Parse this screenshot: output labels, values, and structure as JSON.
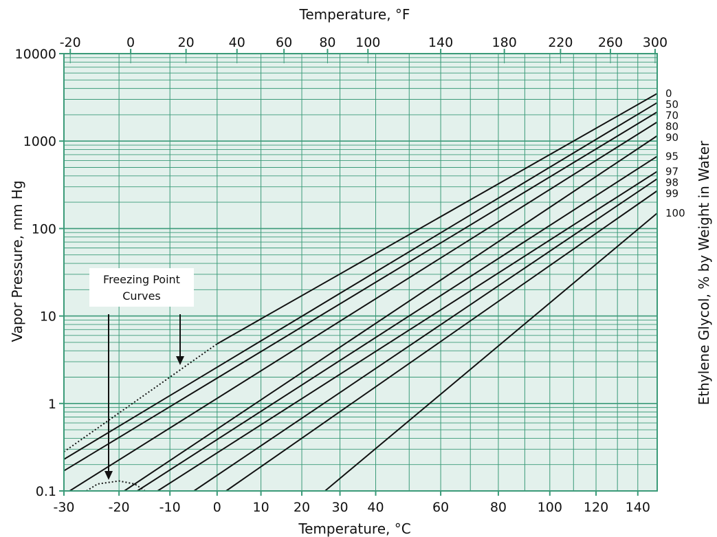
{
  "chart_data": {
    "type": "line",
    "xlabel_bottom": "Temperature, °C",
    "xlabel_top": "Temperature, °F",
    "ylabel": "Vapor Pressure, mm Hg",
    "right_label": "Ethylene Glycol, % by Weight in Water",
    "y_scale": "log",
    "ylim": [
      0.1,
      10000
    ],
    "y_ticks": [
      0.1,
      1,
      10,
      100,
      1000,
      10000
    ],
    "y_tick_labels": [
      "0.1",
      "1",
      "10",
      "100",
      "1000",
      "10000"
    ],
    "x_scale": "reciprocal_absolute_temperature",
    "x_ticks_c": [
      -30,
      -20,
      -10,
      0,
      10,
      20,
      30,
      40,
      60,
      80,
      100,
      120,
      140
    ],
    "x_tick_labels_c": [
      "-30",
      "-20",
      "-10",
      "0",
      "10",
      "20",
      "30",
      "40",
      "60",
      "80",
      "100",
      "120",
      "140"
    ],
    "x_ticks_f": [
      -20,
      0,
      20,
      40,
      60,
      80,
      100,
      140,
      180,
      220,
      260,
      300
    ],
    "x_tick_labels_f": [
      "-20",
      "0",
      "20",
      "40",
      "60",
      "80",
      "100",
      "140",
      "180",
      "220",
      "260",
      "300"
    ],
    "xlim_c": [
      -30,
      150
    ],
    "grid": true,
    "colors": {
      "background": "#e3f1ec",
      "grid": "#3a9a78",
      "line": "#111111"
    },
    "series": [
      {
        "name": "0",
        "points": [
          [
            0,
            4.8
          ],
          [
            150,
            3500
          ]
        ]
      },
      {
        "name": "50",
        "points": [
          [
            -30,
            0.23
          ],
          [
            150,
            2750
          ]
        ]
      },
      {
        "name": "70",
        "points": [
          [
            -30,
            0.17
          ],
          [
            150,
            2150
          ]
        ]
      },
      {
        "name": "80",
        "points": [
          [
            -29,
            0.1
          ],
          [
            150,
            1650
          ]
        ]
      },
      {
        "name": "90",
        "points": [
          [
            -19,
            0.1
          ],
          [
            150,
            1150
          ]
        ]
      },
      {
        "name": "95",
        "points": [
          [
            -16.5,
            0.1
          ],
          [
            150,
            670
          ]
        ]
      },
      {
        "name": "97",
        "points": [
          [
            -12.5,
            0.1
          ],
          [
            150,
            450
          ]
        ]
      },
      {
        "name": "98",
        "points": [
          [
            -5,
            0.1
          ],
          [
            150,
            370
          ]
        ]
      },
      {
        "name": "99",
        "points": [
          [
            2,
            0.1
          ],
          [
            150,
            270
          ]
        ]
      },
      {
        "name": "100",
        "points": [
          [
            26,
            0.1
          ],
          [
            150,
            150
          ]
        ]
      }
    ],
    "freezing_point_curves": [
      {
        "points": [
          [
            -30,
            0.28
          ],
          [
            0,
            4.8
          ]
        ]
      },
      {
        "points": [
          [
            -26,
            0.1
          ],
          [
            -24,
            0.12
          ],
          [
            -20,
            0.13
          ],
          [
            -17,
            0.12
          ],
          [
            -15,
            0.1
          ]
        ]
      }
    ],
    "annotations": [
      {
        "text_line1": "Freezing Point",
        "text_line2": "Curves"
      }
    ]
  }
}
